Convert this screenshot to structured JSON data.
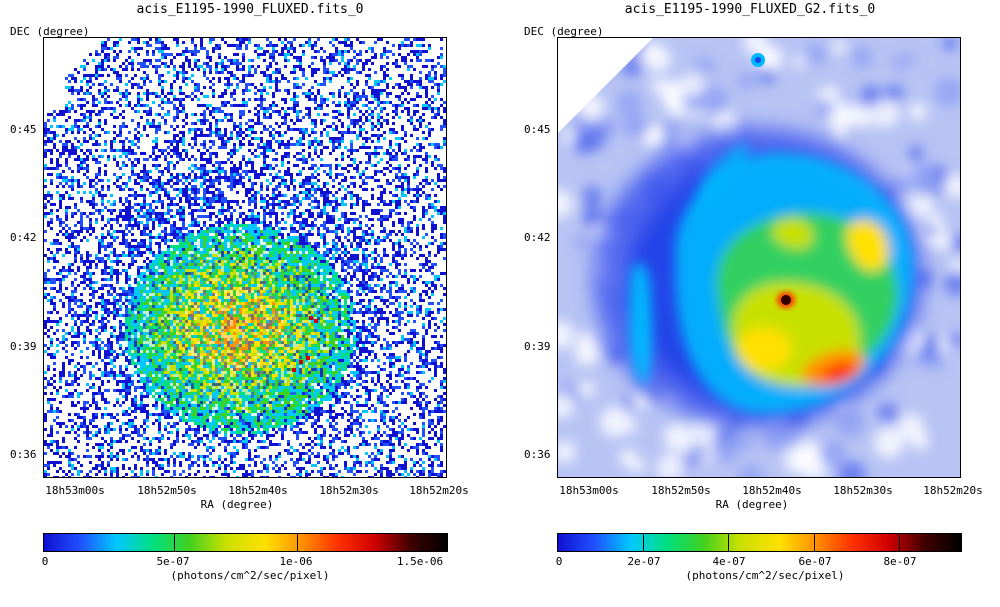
{
  "left": {
    "title": "acis_E1195-1990_FLUXED.fits_0",
    "dec_axis_label": "DEC (degree)",
    "ra_axis_label": "RA (degree)",
    "y_ticks": [
      "0:45",
      "0:42",
      "0:39",
      "0:36"
    ],
    "x_ticks": [
      "18h53m00s",
      "18h52m50s",
      "18h52m40s",
      "18h52m30s",
      "18h52m20s"
    ],
    "colorbar_labels": [
      "0",
      "5e-07",
      "1e-06",
      "1.5e-06"
    ],
    "colorbar_unit": "(photons/cm^2/sec/pixel)"
  },
  "right": {
    "title": "acis_E1195-1990_FLUXED_G2.fits_0",
    "dec_axis_label": "DEC (degree)",
    "ra_axis_label": "RA (degree)",
    "y_ticks": [
      "0:45",
      "0:42",
      "0:39",
      "0:36"
    ],
    "x_ticks": [
      "18h53m00s",
      "18h52m50s",
      "18h52m40s",
      "18h52m30s",
      "18h52m20s"
    ],
    "colorbar_labels": [
      "0",
      "2e-07",
      "4e-07",
      "6e-07",
      "8e-07"
    ],
    "colorbar_unit": "(photons/cm^2/sec/pixel)"
  },
  "colormap": [
    "#ffffff",
    "#1010d0",
    "#2050ff",
    "#00c8ff",
    "#00e080",
    "#40d020",
    "#c8e000",
    "#ffe000",
    "#ff9000",
    "#ff3000",
    "#d00000",
    "#400000",
    "#000000"
  ]
}
